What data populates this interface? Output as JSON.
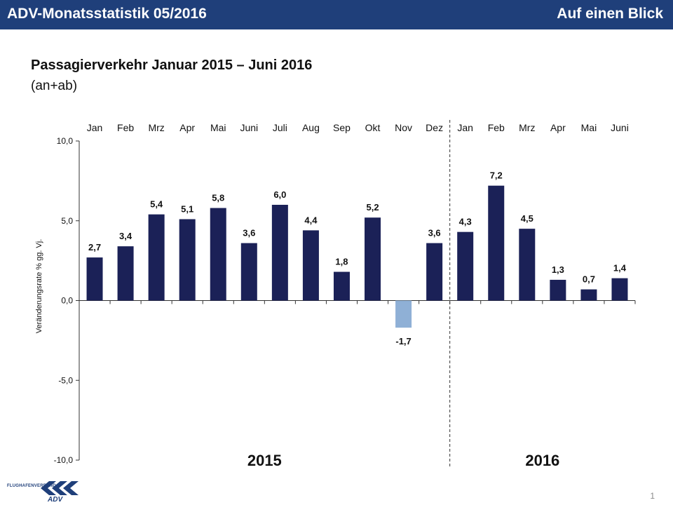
{
  "header": {
    "title": "ADV-Monatsstatistik 05/2016",
    "right": "Auf einen Blick"
  },
  "page_number": "1",
  "logo": {
    "text": "FLUGHAFENVERBAND",
    "mark": "ADV"
  },
  "colors": {
    "header": "#1f3f7a",
    "bar": "#1b2157",
    "negative_bar": "#8fb0d6"
  },
  "chart_data": {
    "type": "bar",
    "title": "Passagierverkehr Januar 2015 – Juni 2016",
    "subtitle": "(an+ab)",
    "ylabel": "Veränderungsrate % gg. Vj.",
    "xlabel": "",
    "ylim": [
      -10,
      10
    ],
    "yticks": [
      10,
      5,
      0,
      -5,
      -10
    ],
    "ytick_labels": [
      "10,0",
      "5,0",
      "0,0",
      "-5,0",
      "-10,0"
    ],
    "categories": [
      "Jan",
      "Feb",
      "Mrz",
      "Apr",
      "Mai",
      "Juni",
      "Juli",
      "Aug",
      "Sep",
      "Okt",
      "Nov",
      "Dez",
      "Jan",
      "Feb",
      "Mrz",
      "Apr",
      "Mai",
      "Juni"
    ],
    "values": [
      2.7,
      3.4,
      5.4,
      5.1,
      5.8,
      3.6,
      6.0,
      4.4,
      1.8,
      5.2,
      -1.7,
      3.6,
      4.3,
      7.2,
      4.5,
      1.3,
      0.7,
      1.4
    ],
    "value_labels": [
      "2,7",
      "3,4",
      "5,4",
      "5,1",
      "5,8",
      "3,6",
      "6,0",
      "4,4",
      "1,8",
      "5,2",
      "-1,7",
      "3,6",
      "4,3",
      "7,2",
      "4,5",
      "1,3",
      "0,7",
      "1,4"
    ],
    "year_groups": [
      {
        "label": "2015"
      },
      {
        "label": "2016"
      }
    ],
    "grid": false,
    "legend": "none"
  }
}
